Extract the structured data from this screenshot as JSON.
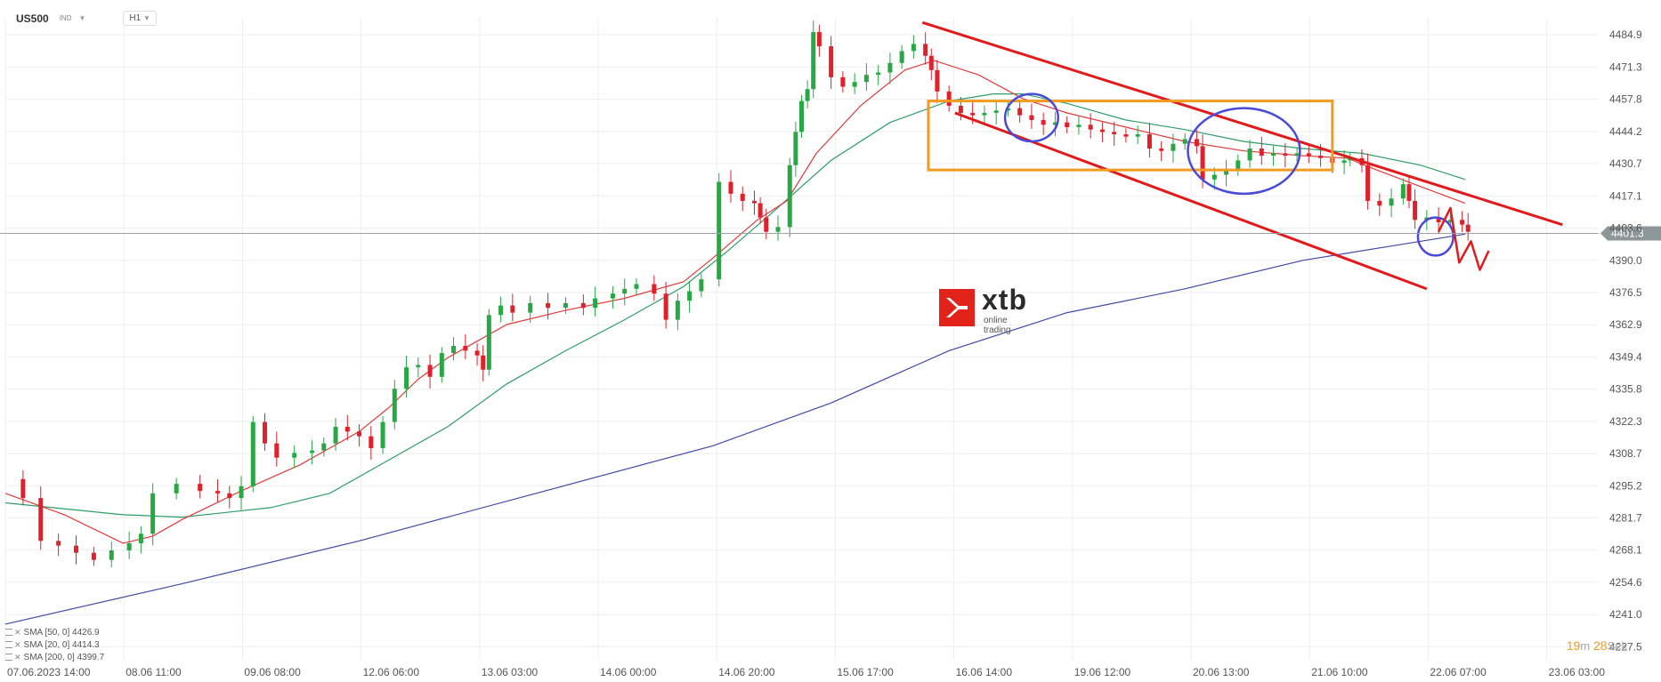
{
  "header": {
    "symbol": "US500",
    "symbol_type": "IND",
    "timeframe": "H1"
  },
  "chart_data": {
    "type": "candlestick",
    "price_axis": [
      "4484.9",
      "4471.3",
      "4457.8",
      "4444.2",
      "4430.7",
      "4417.1",
      "4403.6",
      "4390.0",
      "4376.5",
      "4362.9",
      "4349.4",
      "4335.8",
      "4322.3",
      "4308.7",
      "4295.2",
      "4281.7",
      "4268.1",
      "4254.6",
      "4241.0",
      "4227.5"
    ],
    "ylim": [
      4222,
      4492
    ],
    "current_price": "4401.3",
    "time_axis": [
      "07.06.2023   14:00",
      "08.06   11:00",
      "09.06   08:00",
      "12.06   06:00",
      "13.06   03:00",
      "14.06   00:00",
      "14.06   20:00",
      "15.06   17:00",
      "16.06   14:00",
      "19.06   12:00",
      "20.06   13:00",
      "21.06   10:00",
      "22.06   07:00",
      "23.06   03:00"
    ],
    "price_path": [
      [
        0,
        4298
      ],
      [
        6,
        4290
      ],
      [
        12,
        4272
      ],
      [
        18,
        4270
      ],
      [
        24,
        4267
      ],
      [
        30,
        4264
      ],
      [
        36,
        4268
      ],
      [
        42,
        4271
      ],
      [
        46,
        4275
      ],
      [
        50,
        4292
      ],
      [
        58,
        4296
      ],
      [
        66,
        4293
      ],
      [
        72,
        4292
      ],
      [
        76,
        4290
      ],
      [
        80,
        4295
      ],
      [
        84,
        4322
      ],
      [
        88,
        4313
      ],
      [
        92,
        4307
      ],
      [
        98,
        4309
      ],
      [
        104,
        4310
      ],
      [
        108,
        4313
      ],
      [
        112,
        4320
      ],
      [
        116,
        4318
      ],
      [
        120,
        4316
      ],
      [
        124,
        4311
      ],
      [
        128,
        4322
      ],
      [
        132,
        4336
      ],
      [
        136,
        4345
      ],
      [
        140,
        4346
      ],
      [
        144,
        4341
      ],
      [
        148,
        4351
      ],
      [
        152,
        4354
      ],
      [
        156,
        4352
      ],
      [
        160,
        4350
      ],
      [
        162,
        4344
      ],
      [
        164,
        4367
      ],
      [
        168,
        4371
      ],
      [
        172,
        4368
      ],
      [
        178,
        4372
      ],
      [
        184,
        4370
      ],
      [
        190,
        4372
      ],
      [
        196,
        4370
      ],
      [
        200,
        4374
      ],
      [
        206,
        4376
      ],
      [
        210,
        4378
      ],
      [
        214,
        4380
      ],
      [
        220,
        4376
      ],
      [
        224,
        4365
      ],
      [
        228,
        4373
      ],
      [
        232,
        4377
      ],
      [
        236,
        4382
      ],
      [
        242,
        4423
      ],
      [
        246,
        4418
      ],
      [
        250,
        4415
      ],
      [
        254,
        4414
      ],
      [
        256,
        4408
      ],
      [
        258,
        4402
      ],
      [
        262,
        4404
      ],
      [
        266,
        4430
      ],
      [
        268,
        4444
      ],
      [
        270,
        4457
      ],
      [
        272,
        4462
      ],
      [
        274,
        4486
      ],
      [
        276,
        4480
      ],
      [
        280,
        4467
      ],
      [
        284,
        4463
      ],
      [
        288,
        4465
      ],
      [
        292,
        4468
      ],
      [
        296,
        4469
      ],
      [
        300,
        4473
      ],
      [
        304,
        4478
      ],
      [
        308,
        4481
      ],
      [
        312,
        4476
      ],
      [
        314,
        4470
      ],
      [
        316,
        4461
      ],
      [
        320,
        4455
      ],
      [
        324,
        4452
      ],
      [
        328,
        4451
      ],
      [
        332,
        4452
      ],
      [
        336,
        4453
      ],
      [
        340,
        4454
      ],
      [
        344,
        4451
      ],
      [
        348,
        4449
      ],
      [
        352,
        4447
      ],
      [
        356,
        4448
      ],
      [
        360,
        4446
      ],
      [
        364,
        4447
      ],
      [
        368,
        4445
      ],
      [
        372,
        4444
      ],
      [
        376,
        4443
      ],
      [
        380,
        4442
      ],
      [
        384,
        4443
      ],
      [
        388,
        4437
      ],
      [
        392,
        4436
      ],
      [
        396,
        4439
      ],
      [
        400,
        4441
      ],
      [
        404,
        4438
      ],
      [
        406,
        4424
      ],
      [
        410,
        4426
      ],
      [
        414,
        4428
      ],
      [
        418,
        4432
      ],
      [
        422,
        4437
      ],
      [
        426,
        4434
      ],
      [
        430,
        4435
      ],
      [
        434,
        4434
      ],
      [
        438,
        4435
      ],
      [
        442,
        4434
      ],
      [
        446,
        4433
      ],
      [
        450,
        4431
      ],
      [
        454,
        4432
      ],
      [
        456,
        4433
      ],
      [
        460,
        4430
      ],
      [
        462,
        4415
      ],
      [
        466,
        4413
      ],
      [
        470,
        4416
      ],
      [
        474,
        4422
      ],
      [
        476,
        4415
      ],
      [
        478,
        4407
      ],
      [
        482,
        4408
      ],
      [
        486,
        4406
      ],
      [
        490,
        4407
      ],
      [
        494,
        4405
      ],
      [
        496,
        4402
      ]
    ],
    "series": [
      {
        "name": "SMA [50, 0]",
        "value": "4426.9",
        "color": "#2e9d6a",
        "points": [
          [
            0,
            4288
          ],
          [
            40,
            4283
          ],
          [
            60,
            4282
          ],
          [
            90,
            4286
          ],
          [
            110,
            4292
          ],
          [
            130,
            4306
          ],
          [
            150,
            4320
          ],
          [
            170,
            4338
          ],
          [
            190,
            4352
          ],
          [
            210,
            4365
          ],
          [
            230,
            4379
          ],
          [
            245,
            4394
          ],
          [
            260,
            4410
          ],
          [
            280,
            4432
          ],
          [
            300,
            4448
          ],
          [
            320,
            4457
          ],
          [
            335,
            4460
          ],
          [
            345,
            4460
          ],
          [
            360,
            4456
          ],
          [
            380,
            4449
          ],
          [
            400,
            4445
          ],
          [
            420,
            4440
          ],
          [
            440,
            4437
          ],
          [
            460,
            4435
          ],
          [
            480,
            4430
          ],
          [
            495,
            4424
          ]
        ]
      },
      {
        "name": "SMA [20, 0]",
        "value": "4414.3",
        "color": "#e23b3b",
        "points": [
          [
            0,
            4292
          ],
          [
            20,
            4283
          ],
          [
            40,
            4271
          ],
          [
            50,
            4274
          ],
          [
            60,
            4281
          ],
          [
            70,
            4287
          ],
          [
            80,
            4293
          ],
          [
            100,
            4304
          ],
          [
            110,
            4311
          ],
          [
            120,
            4318
          ],
          [
            130,
            4328
          ],
          [
            140,
            4340
          ],
          [
            150,
            4349
          ],
          [
            160,
            4356
          ],
          [
            170,
            4363
          ],
          [
            190,
            4369
          ],
          [
            210,
            4374
          ],
          [
            230,
            4381
          ],
          [
            240,
            4391
          ],
          [
            255,
            4407
          ],
          [
            265,
            4415
          ],
          [
            275,
            4435
          ],
          [
            290,
            4455
          ],
          [
            305,
            4470
          ],
          [
            315,
            4474
          ],
          [
            330,
            4468
          ],
          [
            345,
            4458
          ],
          [
            360,
            4452
          ],
          [
            380,
            4446
          ],
          [
            400,
            4440
          ],
          [
            420,
            4436
          ],
          [
            440,
            4434
          ],
          [
            455,
            4433
          ],
          [
            465,
            4428
          ],
          [
            480,
            4421
          ],
          [
            495,
            4414
          ]
        ]
      },
      {
        "name": "SMA [200, 0]",
        "value": "4399.7",
        "color": "#4249a8",
        "points": [
          [
            0,
            4237
          ],
          [
            60,
            4254
          ],
          [
            120,
            4272
          ],
          [
            180,
            4292
          ],
          [
            240,
            4312
          ],
          [
            280,
            4330
          ],
          [
            320,
            4352
          ],
          [
            360,
            4368
          ],
          [
            400,
            4378
          ],
          [
            440,
            4390
          ],
          [
            470,
            4396
          ],
          [
            495,
            4401
          ]
        ]
      }
    ],
    "annotations": [
      {
        "shape": "channel-line",
        "color": "#e11b1b",
        "from": [
          311,
          4490
        ],
        "to": [
          528,
          4405
        ]
      },
      {
        "shape": "channel-line",
        "color": "#e11b1b",
        "from": [
          322,
          4452
        ],
        "to": [
          482,
          4378
        ]
      },
      {
        "shape": "rectangle",
        "color": "#f29b1f",
        "from": [
          313,
          4457
        ],
        "to": [
          450,
          4428
        ]
      },
      {
        "shape": "ellipse",
        "color": "#4a4ad6",
        "center": [
          348,
          4450
        ],
        "radius": [
          9,
          10
        ]
      },
      {
        "shape": "ellipse",
        "color": "#4a4ad6",
        "center": [
          420,
          4436
        ],
        "radius": [
          19,
          18
        ]
      },
      {
        "shape": "ellipse",
        "color": "#4a4ad6",
        "center": [
          485,
          4400
        ],
        "radius": [
          6,
          8
        ]
      },
      {
        "shape": "zigzag",
        "color": "#e11b1b",
        "points": [
          [
            486,
            4402
          ],
          [
            490,
            4412
          ],
          [
            493,
            4389
          ],
          [
            497,
            4398
          ],
          [
            500,
            4386
          ],
          [
            503,
            4394
          ]
        ]
      }
    ],
    "grid": true,
    "legend": "bottom-left"
  },
  "legend": [
    {
      "label": "SMA [50, 0]",
      "value": "4426.9"
    },
    {
      "label": "SMA [20, 0]",
      "value": "4414.3"
    },
    {
      "label": "SMA [200, 0]",
      "value": "4399.7"
    }
  ],
  "logo": {
    "word": "xtb",
    "sub": "online trading"
  },
  "timer": {
    "minutes": "19",
    "min_unit": "m",
    "seconds": "28",
    "sec_unit": "Sek"
  },
  "colors": {
    "up": "#28a745",
    "down": "#e0202b",
    "grid": "#eeeeee",
    "price_line": "#9aa3a6",
    "price_tag": "#8d979a"
  }
}
